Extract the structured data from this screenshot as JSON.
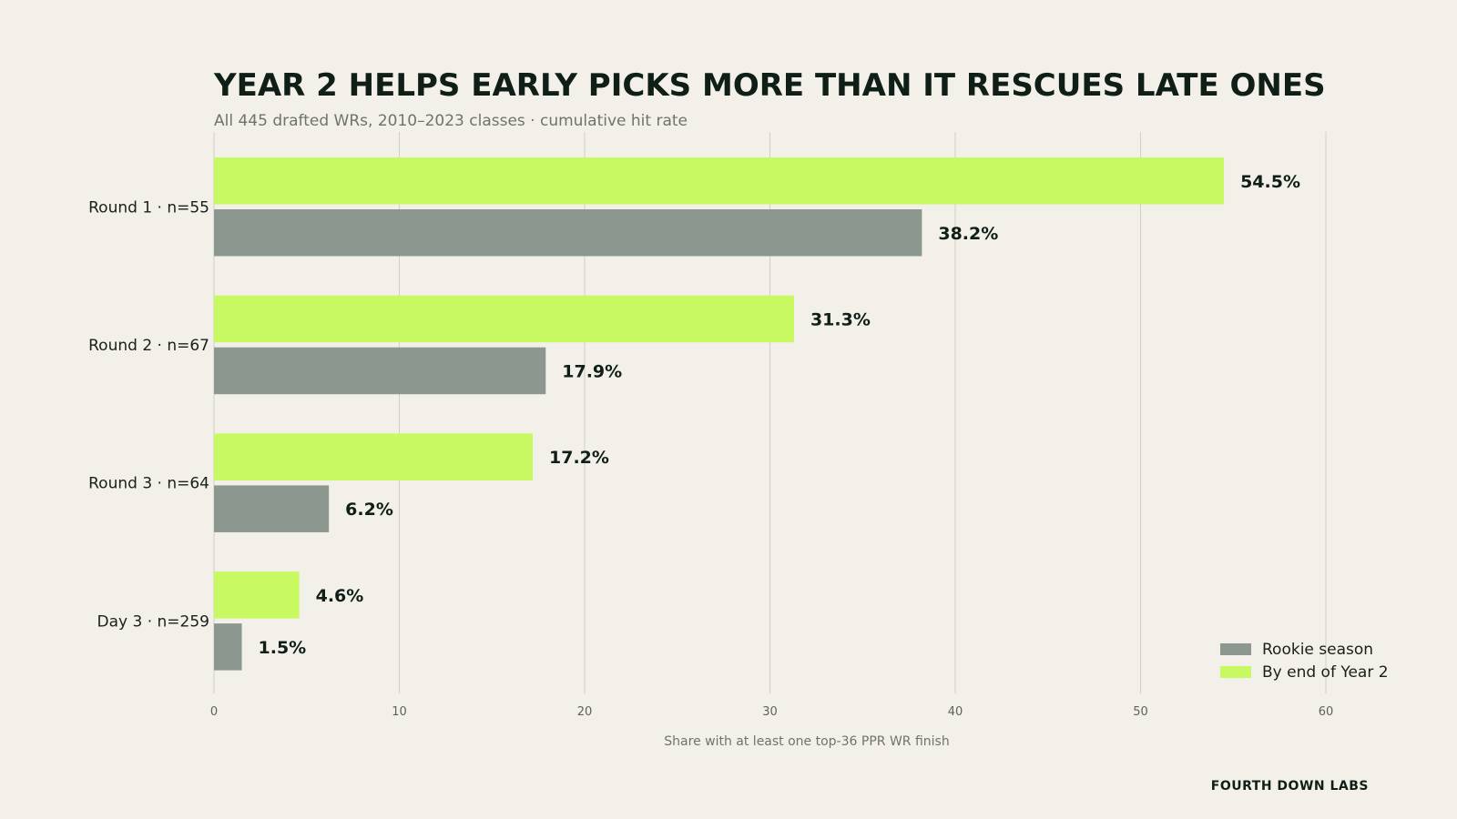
{
  "chart_data": {
    "type": "bar",
    "orientation": "horizontal",
    "title": "YEAR 2 HELPS EARLY PICKS MORE THAN IT RESCUES LATE ONES",
    "subtitle": "All 445 drafted WRs, 2010–2023 classes · cumulative hit rate",
    "xlabel": "Share with at least one top-36 PPR WR finish",
    "xlim": [
      0,
      63
    ],
    "xticks": [
      0,
      10,
      20,
      30,
      40,
      50,
      60
    ],
    "grid": true,
    "legend_position": "bottom-right",
    "categories": [
      "Round 1  ·  n=55",
      "Round 2  ·  n=67",
      "Round 3  ·  n=64",
      "Day 3  ·  n=259"
    ],
    "series": [
      {
        "name": "Rookie season",
        "color": "#8b978f",
        "values": [
          38.2,
          17.9,
          6.2,
          1.5
        ],
        "labels": [
          "38.2%",
          "17.9%",
          "6.2%",
          "1.5%"
        ]
      },
      {
        "name": "By end of Year 2",
        "color": "#c8f960",
        "values": [
          54.5,
          31.3,
          17.2,
          4.6
        ],
        "labels": [
          "54.5%",
          "31.3%",
          "17.2%",
          "4.6%"
        ]
      }
    ]
  },
  "footer": {
    "brand": "FOURTH DOWN LABS"
  }
}
